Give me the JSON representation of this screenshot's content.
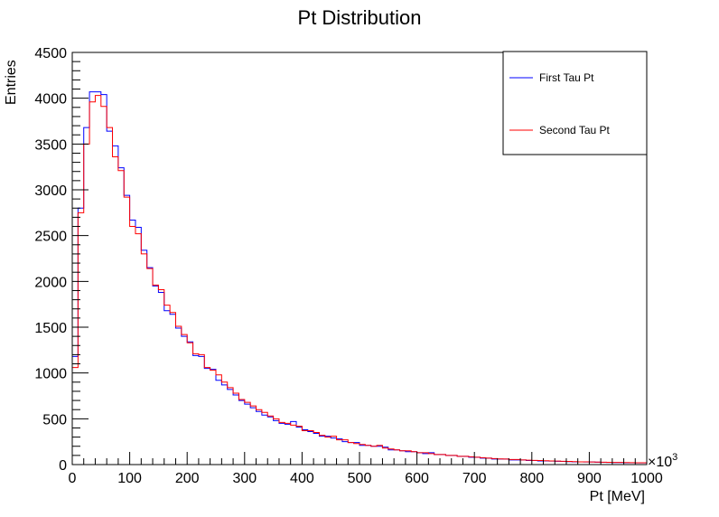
{
  "chart_data": {
    "type": "line",
    "title": "Pt Distribution",
    "xlabel": "Pt [MeV]",
    "ylabel": "Entries",
    "x_multiplier_label": "×10",
    "x_multiplier_exp": "3",
    "xlim": [
      0,
      1000
    ],
    "ylim": [
      0,
      4500
    ],
    "x_ticks": [
      0,
      100,
      200,
      300,
      400,
      500,
      600,
      700,
      800,
      900,
      1000
    ],
    "x_tick_labels": [
      "0",
      "100",
      "200",
      "300",
      "400",
      "500",
      "600",
      "700",
      "800",
      "900",
      "1000"
    ],
    "y_ticks": [
      0,
      500,
      1000,
      1500,
      2000,
      2500,
      3000,
      3500,
      4000,
      4500
    ],
    "y_tick_labels": [
      "0",
      "500",
      "1000",
      "1500",
      "2000",
      "2500",
      "3000",
      "3500",
      "4000",
      "4500"
    ],
    "bin_width": 10,
    "legend_position": "top-right",
    "grid": false,
    "series": [
      {
        "name": "First Tau Pt",
        "color": "#0000ff",
        "bin_edges_start": 0,
        "values": [
          1180,
          2800,
          3680,
          4070,
          4070,
          4040,
          3640,
          3480,
          3240,
          2940,
          2670,
          2590,
          2340,
          2150,
          1950,
          1880,
          1680,
          1640,
          1490,
          1400,
          1340,
          1190,
          1180,
          1050,
          1040,
          920,
          870,
          820,
          760,
          700,
          660,
          620,
          580,
          540,
          520,
          480,
          450,
          440,
          470,
          410,
          380,
          360,
          340,
          310,
          310,
          290,
          280,
          250,
          240,
          240,
          210,
          210,
          200,
          200,
          190,
          160,
          160,
          150,
          140,
          140,
          130,
          120,
          130,
          110,
          110,
          100,
          100,
          90,
          90,
          80,
          80,
          70,
          70,
          60,
          60,
          60,
          50,
          50,
          50,
          45,
          45,
          40,
          40,
          38,
          36,
          34,
          32,
          30,
          30,
          28,
          28,
          26,
          25,
          24,
          22,
          22,
          20,
          20,
          18,
          18
        ]
      },
      {
        "name": "Second Tau Pt",
        "color": "#ff0000",
        "bin_edges_start": 0,
        "values": [
          1060,
          2750,
          3500,
          3960,
          4030,
          3910,
          3680,
          3360,
          3210,
          2920,
          2600,
          2520,
          2300,
          2140,
          1960,
          1910,
          1740,
          1660,
          1510,
          1420,
          1330,
          1210,
          1200,
          1060,
          1030,
          980,
          900,
          840,
          780,
          710,
          680,
          640,
          600,
          570,
          530,
          500,
          460,
          450,
          430,
          420,
          370,
          370,
          350,
          320,
          300,
          310,
          270,
          270,
          240,
          230,
          220,
          210,
          200,
          210,
          180,
          170,
          160,
          150,
          150,
          140,
          130,
          130,
          120,
          110,
          110,
          100,
          100,
          90,
          90,
          85,
          80,
          75,
          70,
          65,
          62,
          60,
          55,
          55,
          50,
          48,
          46,
          44,
          42,
          40,
          38,
          36,
          34,
          32,
          30,
          30,
          28,
          27,
          26,
          25,
          24,
          23,
          22,
          21,
          20,
          20
        ]
      }
    ]
  }
}
